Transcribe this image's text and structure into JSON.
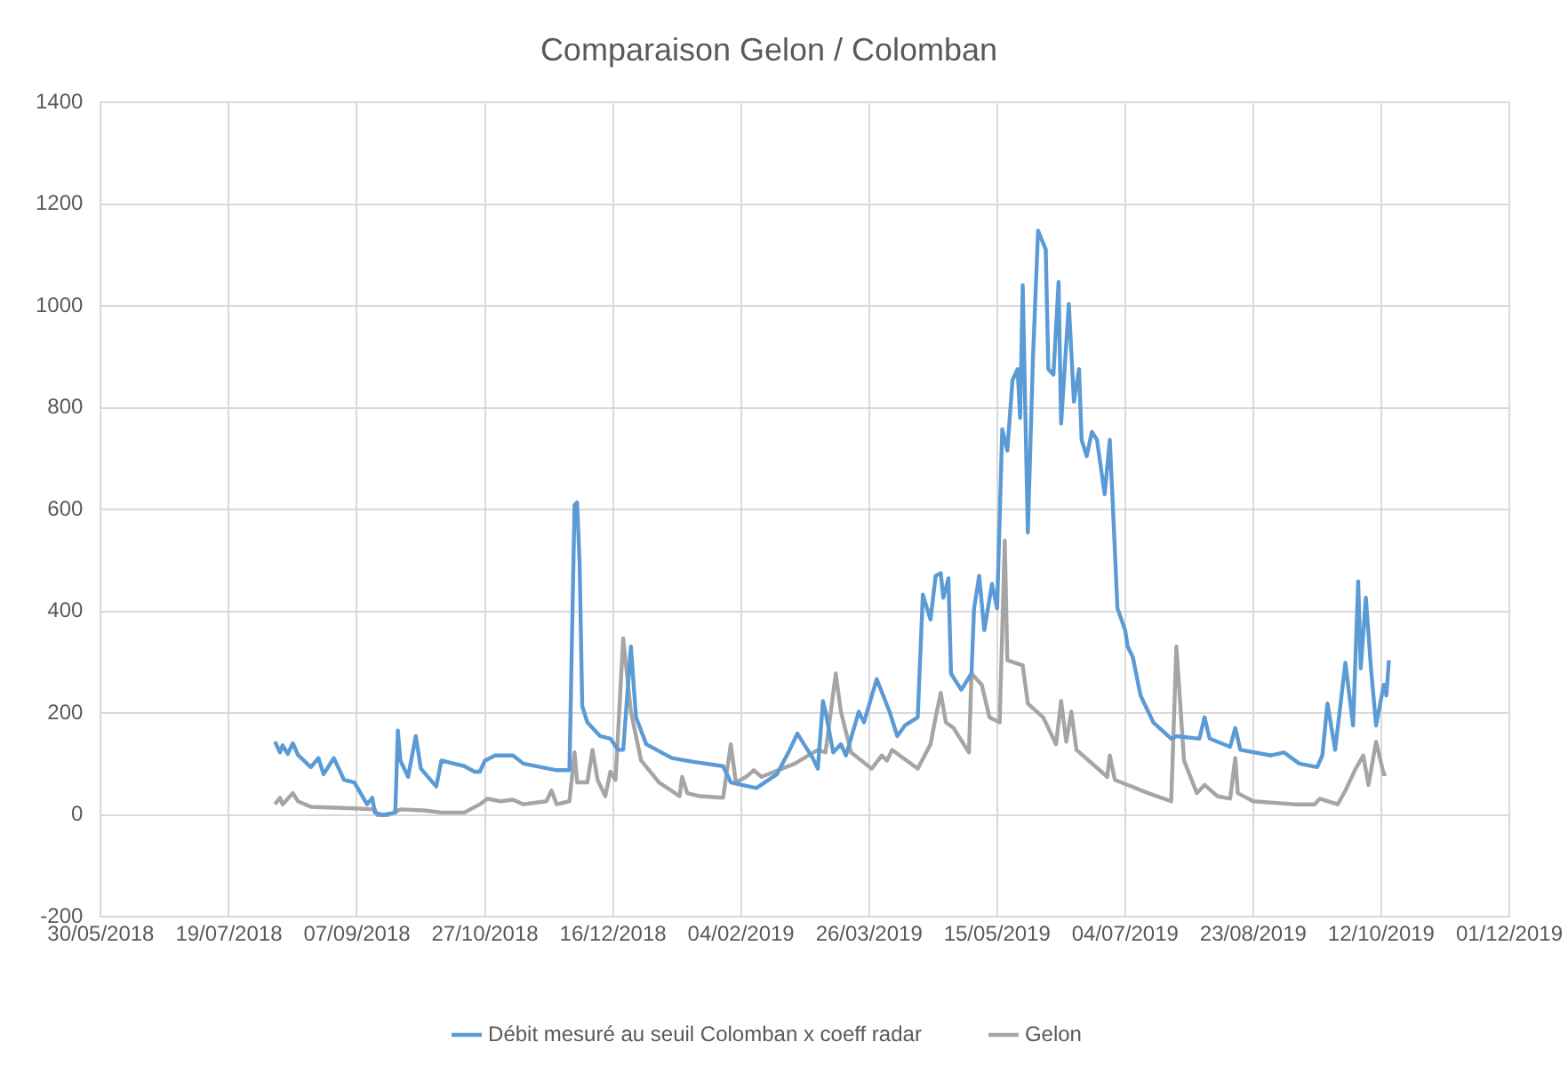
{
  "chart_data": {
    "type": "line",
    "title": "Comparaison Gelon / Colomban",
    "xlim": [
      "2018-05-30",
      "2019-12-01"
    ],
    "xticks": [
      {
        "value": "2018-05-30",
        "label": "30/05/2018"
      },
      {
        "value": "2018-07-19",
        "label": "19/07/2018"
      },
      {
        "value": "2018-09-07",
        "label": "07/09/2018"
      },
      {
        "value": "2018-10-27",
        "label": "27/10/2018"
      },
      {
        "value": "2018-12-16",
        "label": "16/12/2018"
      },
      {
        "value": "2019-02-04",
        "label": "04/02/2019"
      },
      {
        "value": "2019-03-26",
        "label": "26/03/2019"
      },
      {
        "value": "2019-05-15",
        "label": "15/05/2019"
      },
      {
        "value": "2019-07-04",
        "label": "04/07/2019"
      },
      {
        "value": "2019-08-23",
        "label": "23/08/2019"
      },
      {
        "value": "2019-10-12",
        "label": "12/10/2019"
      },
      {
        "value": "2019-12-01",
        "label": "01/12/2019"
      }
    ],
    "ylim": [
      -200,
      1400
    ],
    "yticks": [
      -200,
      0,
      200,
      400,
      600,
      800,
      1000,
      1200,
      1400
    ],
    "grid": true,
    "legend": "bottom",
    "marker": "none",
    "line_style": "solid",
    "series": [
      {
        "name": "Débit mesuré au seuil Colomban x coeff radar",
        "color": "#5b9bd5",
        "x": [
          "2018-08-06",
          "2018-08-08",
          "2018-08-09",
          "2018-08-11",
          "2018-08-13",
          "2018-08-15",
          "2018-08-20",
          "2018-08-23",
          "2018-08-25",
          "2018-08-29",
          "2018-09-02",
          "2018-09-06",
          "2018-09-11",
          "2018-09-13",
          "2018-09-14",
          "2018-09-17",
          "2018-09-22",
          "2018-09-23",
          "2018-09-24",
          "2018-09-27",
          "2018-09-30",
          "2018-10-02",
          "2018-10-08",
          "2018-10-10",
          "2018-10-19",
          "2018-10-23",
          "2018-10-25",
          "2018-10-27",
          "2018-10-31",
          "2018-11-07",
          "2018-11-11",
          "2018-11-24",
          "2018-11-29",
          "2018-12-01",
          "2018-12-02",
          "2018-12-03",
          "2018-12-04",
          "2018-12-06",
          "2018-12-11",
          "2018-12-15",
          "2018-12-18",
          "2018-12-20",
          "2018-12-23",
          "2018-12-25",
          "2018-12-29",
          "2019-01-08",
          "2019-01-17",
          "2019-01-28",
          "2019-01-31",
          "2019-02-10",
          "2019-02-18",
          "2019-02-23",
          "2019-02-26",
          "2019-03-04",
          "2019-03-06",
          "2019-03-08",
          "2019-03-09",
          "2019-03-12",
          "2019-03-15",
          "2019-03-17",
          "2019-03-22",
          "2019-03-24",
          "2019-03-29",
          "2019-04-03",
          "2019-04-06",
          "2019-04-09",
          "2019-04-14",
          "2019-04-16",
          "2019-04-19",
          "2019-04-21",
          "2019-04-23",
          "2019-04-24",
          "2019-04-26",
          "2019-04-27",
          "2019-05-01",
          "2019-05-05",
          "2019-05-06",
          "2019-05-08",
          "2019-05-10",
          "2019-05-13",
          "2019-05-15",
          "2019-05-17",
          "2019-05-19",
          "2019-05-21",
          "2019-05-23",
          "2019-05-24",
          "2019-05-25",
          "2019-05-27",
          "2019-05-29",
          "2019-05-31",
          "2019-06-03",
          "2019-06-04",
          "2019-06-06",
          "2019-06-08",
          "2019-06-09",
          "2019-06-12",
          "2019-06-14",
          "2019-06-16",
          "2019-06-17",
          "2019-06-19",
          "2019-06-21",
          "2019-06-23",
          "2019-06-26",
          "2019-06-28",
          "2019-06-29",
          "2019-07-01",
          "2019-07-04",
          "2019-07-05",
          "2019-07-07",
          "2019-07-10",
          "2019-07-15",
          "2019-07-22",
          "2019-07-24",
          "2019-08-02",
          "2019-08-04",
          "2019-08-06",
          "2019-08-14",
          "2019-08-16",
          "2019-08-18",
          "2019-08-30",
          "2019-09-04",
          "2019-09-10",
          "2019-09-17",
          "2019-09-19",
          "2019-09-21",
          "2019-09-24",
          "2019-09-28",
          "2019-10-01",
          "2019-10-03",
          "2019-10-04",
          "2019-10-06",
          "2019-10-08",
          "2019-10-10",
          "2019-10-13",
          "2019-10-14",
          "2019-10-15"
        ],
        "values": [
          144,
          123,
          137,
          120,
          141,
          118,
          94,
          112,
          80,
          112,
          69,
          64,
          21,
          34,
          5,
          0,
          5,
          166,
          107,
          75,
          155,
          91,
          56,
          107,
          96,
          85,
          85,
          107,
          117,
          117,
          101,
          88,
          88,
          609,
          614,
          491,
          214,
          182,
          155,
          150,
          128,
          128,
          331,
          192,
          139,
          112,
          104,
          96,
          64,
          53,
          80,
          128,
          160,
          112,
          91,
          224,
          203,
          123,
          139,
          117,
          203,
          182,
          267,
          203,
          155,
          176,
          192,
          433,
          384,
          470,
          475,
          427,
          465,
          278,
          246,
          278,
          406,
          470,
          363,
          454,
          406,
          758,
          716,
          854,
          876,
          780,
          1041,
          555,
          897,
          1148,
          1111,
          876,
          865,
          1047,
          769,
          1004,
          812,
          876,
          737,
          705,
          753,
          737,
          630,
          737,
          630,
          406,
          363,
          331,
          310,
          235,
          182,
          150,
          155,
          150,
          192,
          150,
          134,
          171,
          128,
          117,
          123,
          101,
          94,
          117,
          219,
          128,
          299,
          176,
          459,
          288,
          427,
          288,
          176,
          256,
          235,
          304
        ]
      },
      {
        "name": "Gelon",
        "color": "#a5a5a5",
        "x": [
          "2018-08-06",
          "2018-08-08",
          "2018-08-09",
          "2018-08-13",
          "2018-08-15",
          "2018-08-20",
          "2018-09-06",
          "2018-09-14",
          "2018-09-15",
          "2018-09-19",
          "2018-09-24",
          "2018-10-03",
          "2018-10-10",
          "2018-10-19",
          "2018-10-25",
          "2018-10-28",
          "2018-11-02",
          "2018-11-07",
          "2018-11-11",
          "2018-11-20",
          "2018-11-22",
          "2018-11-24",
          "2018-11-29",
          "2018-12-01",
          "2018-12-02",
          "2018-12-06",
          "2018-12-08",
          "2018-12-10",
          "2018-12-13",
          "2018-12-15",
          "2018-12-17",
          "2018-12-20",
          "2018-12-23",
          "2018-12-27",
          "2019-01-03",
          "2019-01-11",
          "2019-01-12",
          "2019-01-14",
          "2019-01-19",
          "2019-01-28",
          "2019-01-31",
          "2019-02-02",
          "2019-02-06",
          "2019-02-09",
          "2019-02-12",
          "2019-02-25",
          "2019-03-06",
          "2019-03-09",
          "2019-03-13",
          "2019-03-15",
          "2019-03-19",
          "2019-03-27",
          "2019-03-31",
          "2019-04-02",
          "2019-04-04",
          "2019-04-14",
          "2019-04-19",
          "2019-04-21",
          "2019-04-23",
          "2019-04-25",
          "2019-04-28",
          "2019-05-04",
          "2019-05-05",
          "2019-05-09",
          "2019-05-12",
          "2019-05-16",
          "2019-05-18",
          "2019-05-19",
          "2019-05-25",
          "2019-05-27",
          "2019-06-02",
          "2019-06-07",
          "2019-06-09",
          "2019-06-11",
          "2019-06-13",
          "2019-06-15",
          "2019-06-27",
          "2019-06-28",
          "2019-06-30",
          "2019-07-13",
          "2019-07-22",
          "2019-07-24",
          "2019-07-27",
          "2019-08-01",
          "2019-08-04",
          "2019-08-09",
          "2019-08-14",
          "2019-08-16",
          "2019-08-17",
          "2019-08-23",
          "2019-09-08",
          "2019-09-16",
          "2019-09-18",
          "2019-09-25",
          "2019-09-28",
          "2019-10-02",
          "2019-10-05",
          "2019-10-07",
          "2019-10-10",
          "2019-10-13",
          "2019-10-14"
        ],
        "values": [
          21,
          34,
          21,
          43,
          27,
          16,
          13,
          11,
          0,
          0,
          11,
          9,
          5,
          5,
          21,
          32,
          27,
          30,
          21,
          27,
          48,
          21,
          27,
          123,
          64,
          64,
          128,
          69,
          37,
          85,
          69,
          347,
          203,
          107,
          64,
          37,
          75,
          43,
          37,
          34,
          139,
          64,
          75,
          88,
          75,
          101,
          128,
          123,
          278,
          203,
          123,
          91,
          117,
          107,
          128,
          91,
          139,
          192,
          240,
          182,
          171,
          123,
          278,
          256,
          192,
          182,
          539,
          304,
          294,
          219,
          192,
          139,
          224,
          144,
          203,
          128,
          75,
          117,
          69,
          43,
          27,
          331,
          107,
          43,
          59,
          37,
          32,
          112,
          43,
          27,
          21,
          21,
          32,
          21,
          48,
          91,
          117,
          59,
          144,
          80,
          80
        ]
      }
    ]
  }
}
